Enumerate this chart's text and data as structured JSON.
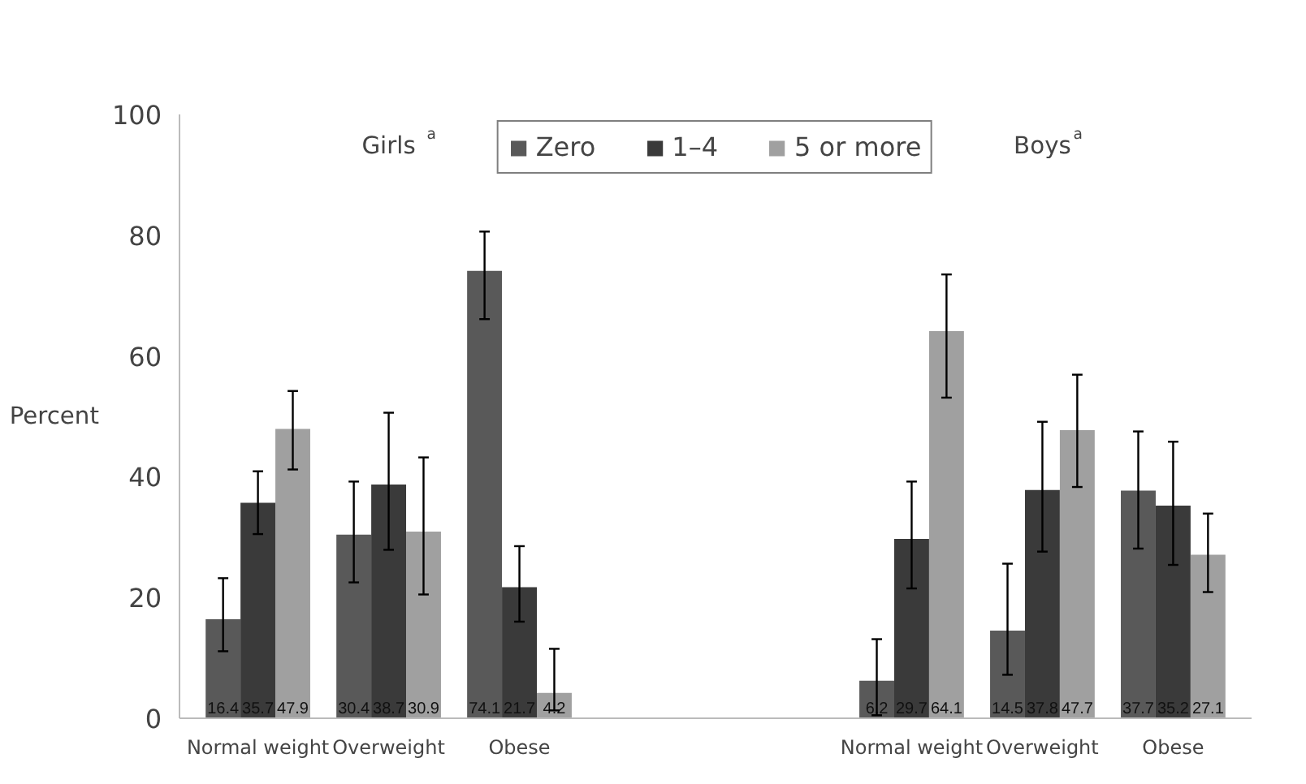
{
  "chart_data": {
    "type": "bar",
    "ylabel": "Percent",
    "categories": [
      "Normal weight",
      "Overweight",
      "Obese",
      null,
      null,
      "Normal weight",
      "Overweight",
      "Obese"
    ],
    "series": [
      {
        "name": "Zero",
        "color": "#595959",
        "values": [
          16.4,
          30.4,
          74.1,
          null,
          null,
          6.2,
          14.5,
          37.7
        ],
        "errors": [
          [
            11.1,
            23.2
          ],
          [
            22.5,
            39.2
          ],
          [
            66.1,
            80.6
          ],
          null,
          null,
          [
            0.5,
            13.1
          ],
          [
            7.2,
            25.6
          ],
          [
            28.1,
            47.5
          ]
        ]
      },
      {
        "name": "1–4",
        "color": "#3a3a3a",
        "values": [
          35.7,
          38.7,
          21.7,
          null,
          null,
          29.7,
          37.8,
          35.2
        ],
        "errors": [
          [
            30.5,
            40.9
          ],
          [
            27.9,
            50.6
          ],
          [
            16.0,
            28.5
          ],
          null,
          null,
          [
            21.5,
            39.2
          ],
          [
            27.6,
            49.1
          ],
          [
            25.4,
            45.8
          ]
        ]
      },
      {
        "name": "5 or more",
        "color": "#a0a0a0",
        "values": [
          47.9,
          30.9,
          4.2,
          null,
          null,
          64.1,
          47.7,
          27.1
        ],
        "errors": [
          [
            41.2,
            54.2
          ],
          [
            20.5,
            43.2
          ],
          [
            1.3,
            11.5
          ],
          null,
          null,
          [
            53.1,
            73.5
          ],
          [
            38.3,
            56.9
          ],
          [
            20.9,
            33.9
          ]
        ]
      }
    ],
    "data_labels": true,
    "ylim": [
      0,
      100
    ],
    "yticks": [
      0,
      20,
      40,
      60,
      80,
      100
    ],
    "grid": false,
    "legend": "top",
    "annotations": [
      "Girls$^{a}$",
      "Boys$^{a}$"
    ]
  }
}
